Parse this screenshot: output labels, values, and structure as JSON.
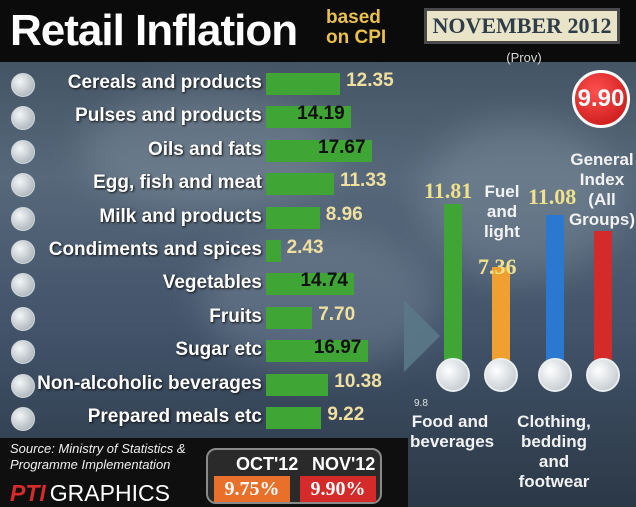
{
  "header": {
    "title": "Retail Inflation",
    "subtitle": "based on CPI",
    "month": "NOVEMBER 2012",
    "prov": "(Prov)"
  },
  "general_index": {
    "value": "9.90",
    "label": "General Index (All Groups)"
  },
  "groups": [
    {
      "name": "Food and beverages",
      "value": "11.81",
      "color": "#3fa535",
      "icon": "cup-icon"
    },
    {
      "name": "Fuel and light",
      "value": "7.36",
      "color": "#f0a030",
      "icon": "fuel-pump-icon"
    },
    {
      "name": "Clothing, bedding and footwear",
      "value": "11.08",
      "color": "#2a78d0",
      "icon": "shirt-icon"
    }
  ],
  "axis_note": "9.8",
  "chart_data": [
    {
      "type": "bar",
      "orientation": "horizontal",
      "categories": [
        "Cereals and products",
        "Pulses and products",
        "Oils and fats",
        "Egg, fish and meat",
        "Milk and products",
        "Condiments and spices",
        "Vegetables",
        "Fruits",
        "Sugar etc",
        "Non-alcoholic beverages",
        "Prepared meals etc"
      ],
      "values": [
        12.35,
        14.19,
        17.67,
        11.33,
        8.96,
        2.43,
        14.74,
        7.7,
        16.97,
        10.38,
        9.22
      ],
      "value_labels": [
        "12.35",
        "14.19",
        "17.67",
        "11.33",
        "8.96",
        "2.43",
        "14.74",
        "7.70",
        "16.97",
        "10.38",
        "9.22"
      ],
      "icons": [
        "wheat-icon",
        "beans-icon",
        "oil-bottle-icon",
        "fish-icon",
        "milk-icon",
        "chilli-icon",
        "vegetables-icon",
        "apple-icon",
        "sugar-icon",
        "bottle-icon",
        "plate-icon"
      ],
      "bar_color": "#3fa535"
    },
    {
      "type": "bar",
      "orientation": "vertical",
      "categories": [
        "Food and beverages",
        "Fuel and light",
        "Clothing, bedding and footwear",
        "General Index (All Groups)"
      ],
      "values": [
        11.81,
        7.36,
        11.08,
        9.9
      ],
      "colors": [
        "#3fa535",
        "#f0a030",
        "#2a78d0",
        "#d42a2a"
      ]
    }
  ],
  "source": "Source: Ministry of Statistics & Programme Implementation",
  "credit": {
    "logo": "PTI",
    "text": "GRAPHICS"
  },
  "comparison": {
    "prev_label": "OCT'12",
    "prev_value": "9.75%",
    "prev_color": "#e8702a",
    "cur_label": "NOV'12",
    "cur_value": "9.90%",
    "cur_color": "#d42a2a"
  }
}
